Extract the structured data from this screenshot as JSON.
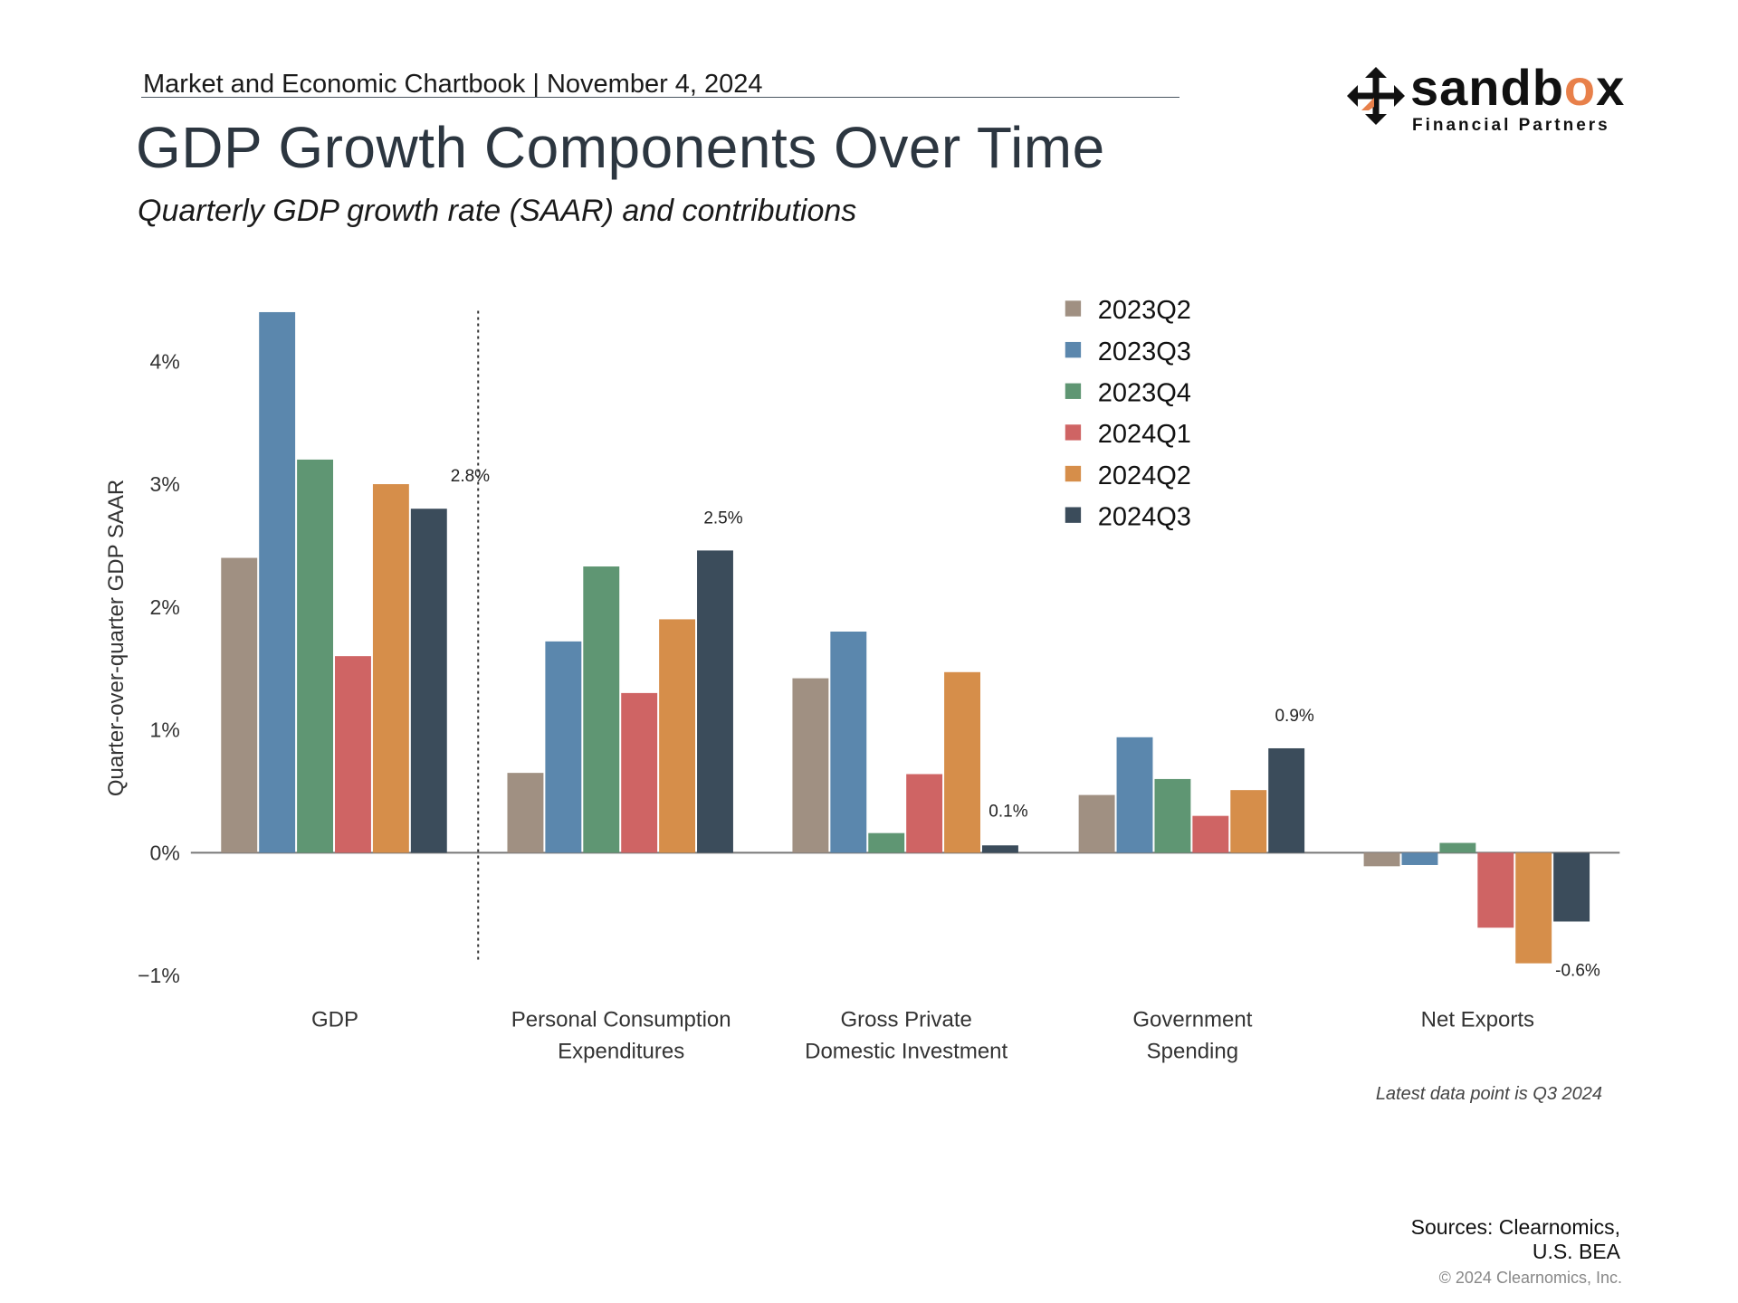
{
  "header": {
    "chartbook": "Market and Economic Chartbook | November 4, 2024",
    "title": "GDP Growth Components Over Time",
    "subtitle": "Quarterly GDP growth rate (SAAR) and contributions"
  },
  "logo": {
    "name_prefix": "sandb",
    "name_accent": "o",
    "name_suffix": "x",
    "tagline": "Financial Partners",
    "accent_color": "#e8804a"
  },
  "footer": {
    "note": "Latest data point is Q3 2024",
    "sources_line1": "Sources: Clearnomics,",
    "sources_line2": "U.S. BEA",
    "copyright": "© 2024 Clearnomics, Inc."
  },
  "chart_data": {
    "type": "bar",
    "title": "GDP Growth Components Over Time",
    "ylabel": "Quarter-over-quarter GDP SAAR",
    "xlabel": "",
    "ylim": [
      -1,
      4.5
    ],
    "yticks": [
      -1,
      0,
      1,
      2,
      3,
      4
    ],
    "ytick_labels": [
      "−1%",
      "0%",
      "1%",
      "2%",
      "3%",
      "4%"
    ],
    "grid": false,
    "legend_position": "top-right",
    "categories": [
      [
        "GDP"
      ],
      [
        "Personal Consumption",
        "Expenditures"
      ],
      [
        "Gross Private",
        "Domestic Investment"
      ],
      [
        "Government",
        "Spending"
      ],
      [
        "Net Exports"
      ]
    ],
    "series": [
      {
        "name": "2023Q2",
        "color": "#a09082",
        "values": [
          2.4,
          0.65,
          1.42,
          0.47,
          -0.11
        ]
      },
      {
        "name": "2023Q3",
        "color": "#5b87ad",
        "values": [
          4.4,
          1.72,
          1.8,
          0.94,
          -0.1
        ]
      },
      {
        "name": "2023Q4",
        "color": "#5f9673",
        "values": [
          3.2,
          2.33,
          0.16,
          0.6,
          0.08
        ]
      },
      {
        "name": "2024Q1",
        "color": "#cf6464",
        "values": [
          1.6,
          1.3,
          0.64,
          0.3,
          -0.61
        ]
      },
      {
        "name": "2024Q2",
        "color": "#d68e4a",
        "values": [
          3.0,
          1.9,
          1.47,
          0.51,
          -0.9
        ]
      },
      {
        "name": "2024Q3",
        "color": "#3b4c5b",
        "values": [
          2.8,
          2.46,
          0.06,
          0.85,
          -0.56
        ]
      }
    ],
    "annotations": [
      {
        "category_index": 0,
        "series": "2024Q3",
        "text": "2.8%"
      },
      {
        "category_index": 1,
        "series": "2024Q3",
        "text": "2.5%"
      },
      {
        "category_index": 2,
        "series": "2024Q3",
        "text": "0.1%"
      },
      {
        "category_index": 3,
        "series": "2024Q3",
        "text": "0.9%"
      },
      {
        "category_index": 4,
        "series": "2024Q3",
        "text": "-0.6%"
      }
    ],
    "separator_after_category": 0
  }
}
